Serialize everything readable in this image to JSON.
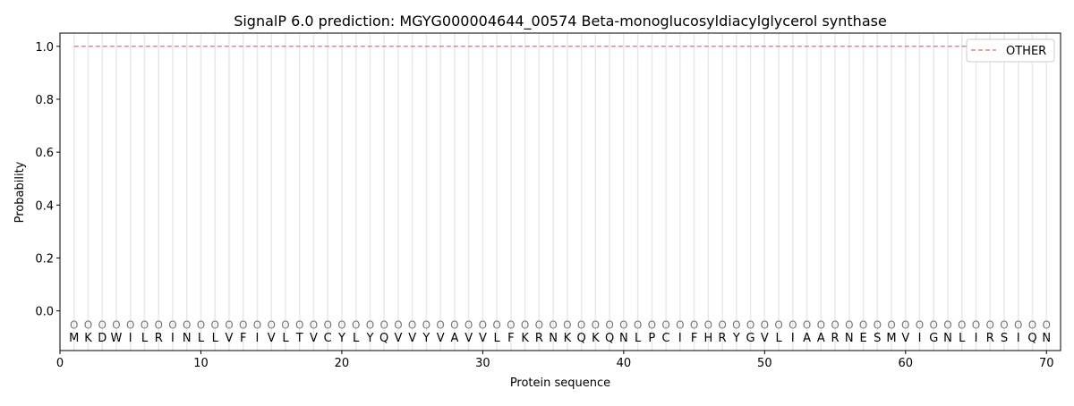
{
  "chart_data": {
    "type": "line",
    "title": "SignalP 6.0 prediction: MGYG000004644_00574 Beta-monoglucosyldiacylglycerol synthase",
    "xlabel": "Protein sequence",
    "ylabel": "Probability",
    "xlim": [
      0,
      71
    ],
    "ylim": [
      -0.15,
      1.05
    ],
    "xticks": [
      0,
      10,
      20,
      30,
      40,
      50,
      60,
      70
    ],
    "yticks": [
      0.0,
      0.2,
      0.4,
      0.6,
      0.8,
      1.0
    ],
    "grid": false,
    "legend_position": "top-right",
    "sequence": [
      "M",
      "K",
      "D",
      "W",
      "I",
      "L",
      "R",
      "I",
      "N",
      "L",
      "L",
      "V",
      "F",
      "I",
      "V",
      "L",
      "T",
      "V",
      "C",
      "Y",
      "L",
      "Y",
      "Q",
      "V",
      "V",
      "Y",
      "V",
      "A",
      "V",
      "V",
      "L",
      "F",
      "K",
      "R",
      "N",
      "K",
      "Q",
      "K",
      "Q",
      "N",
      "L",
      "P",
      "C",
      "I",
      "F",
      "H",
      "R",
      "Y",
      "G",
      "V",
      "L",
      "I",
      "A",
      "A",
      "R",
      "N",
      "E",
      "S",
      "M",
      "V",
      "I",
      "G",
      "N",
      "L",
      "I",
      "R",
      "S",
      "I",
      "Q",
      "N"
    ],
    "region_label": "O",
    "series": [
      {
        "name": "OTHER",
        "color": "#f08080",
        "style": "dashed",
        "x_start": 1,
        "x_end": 70,
        "value": 1.0
      }
    ]
  }
}
